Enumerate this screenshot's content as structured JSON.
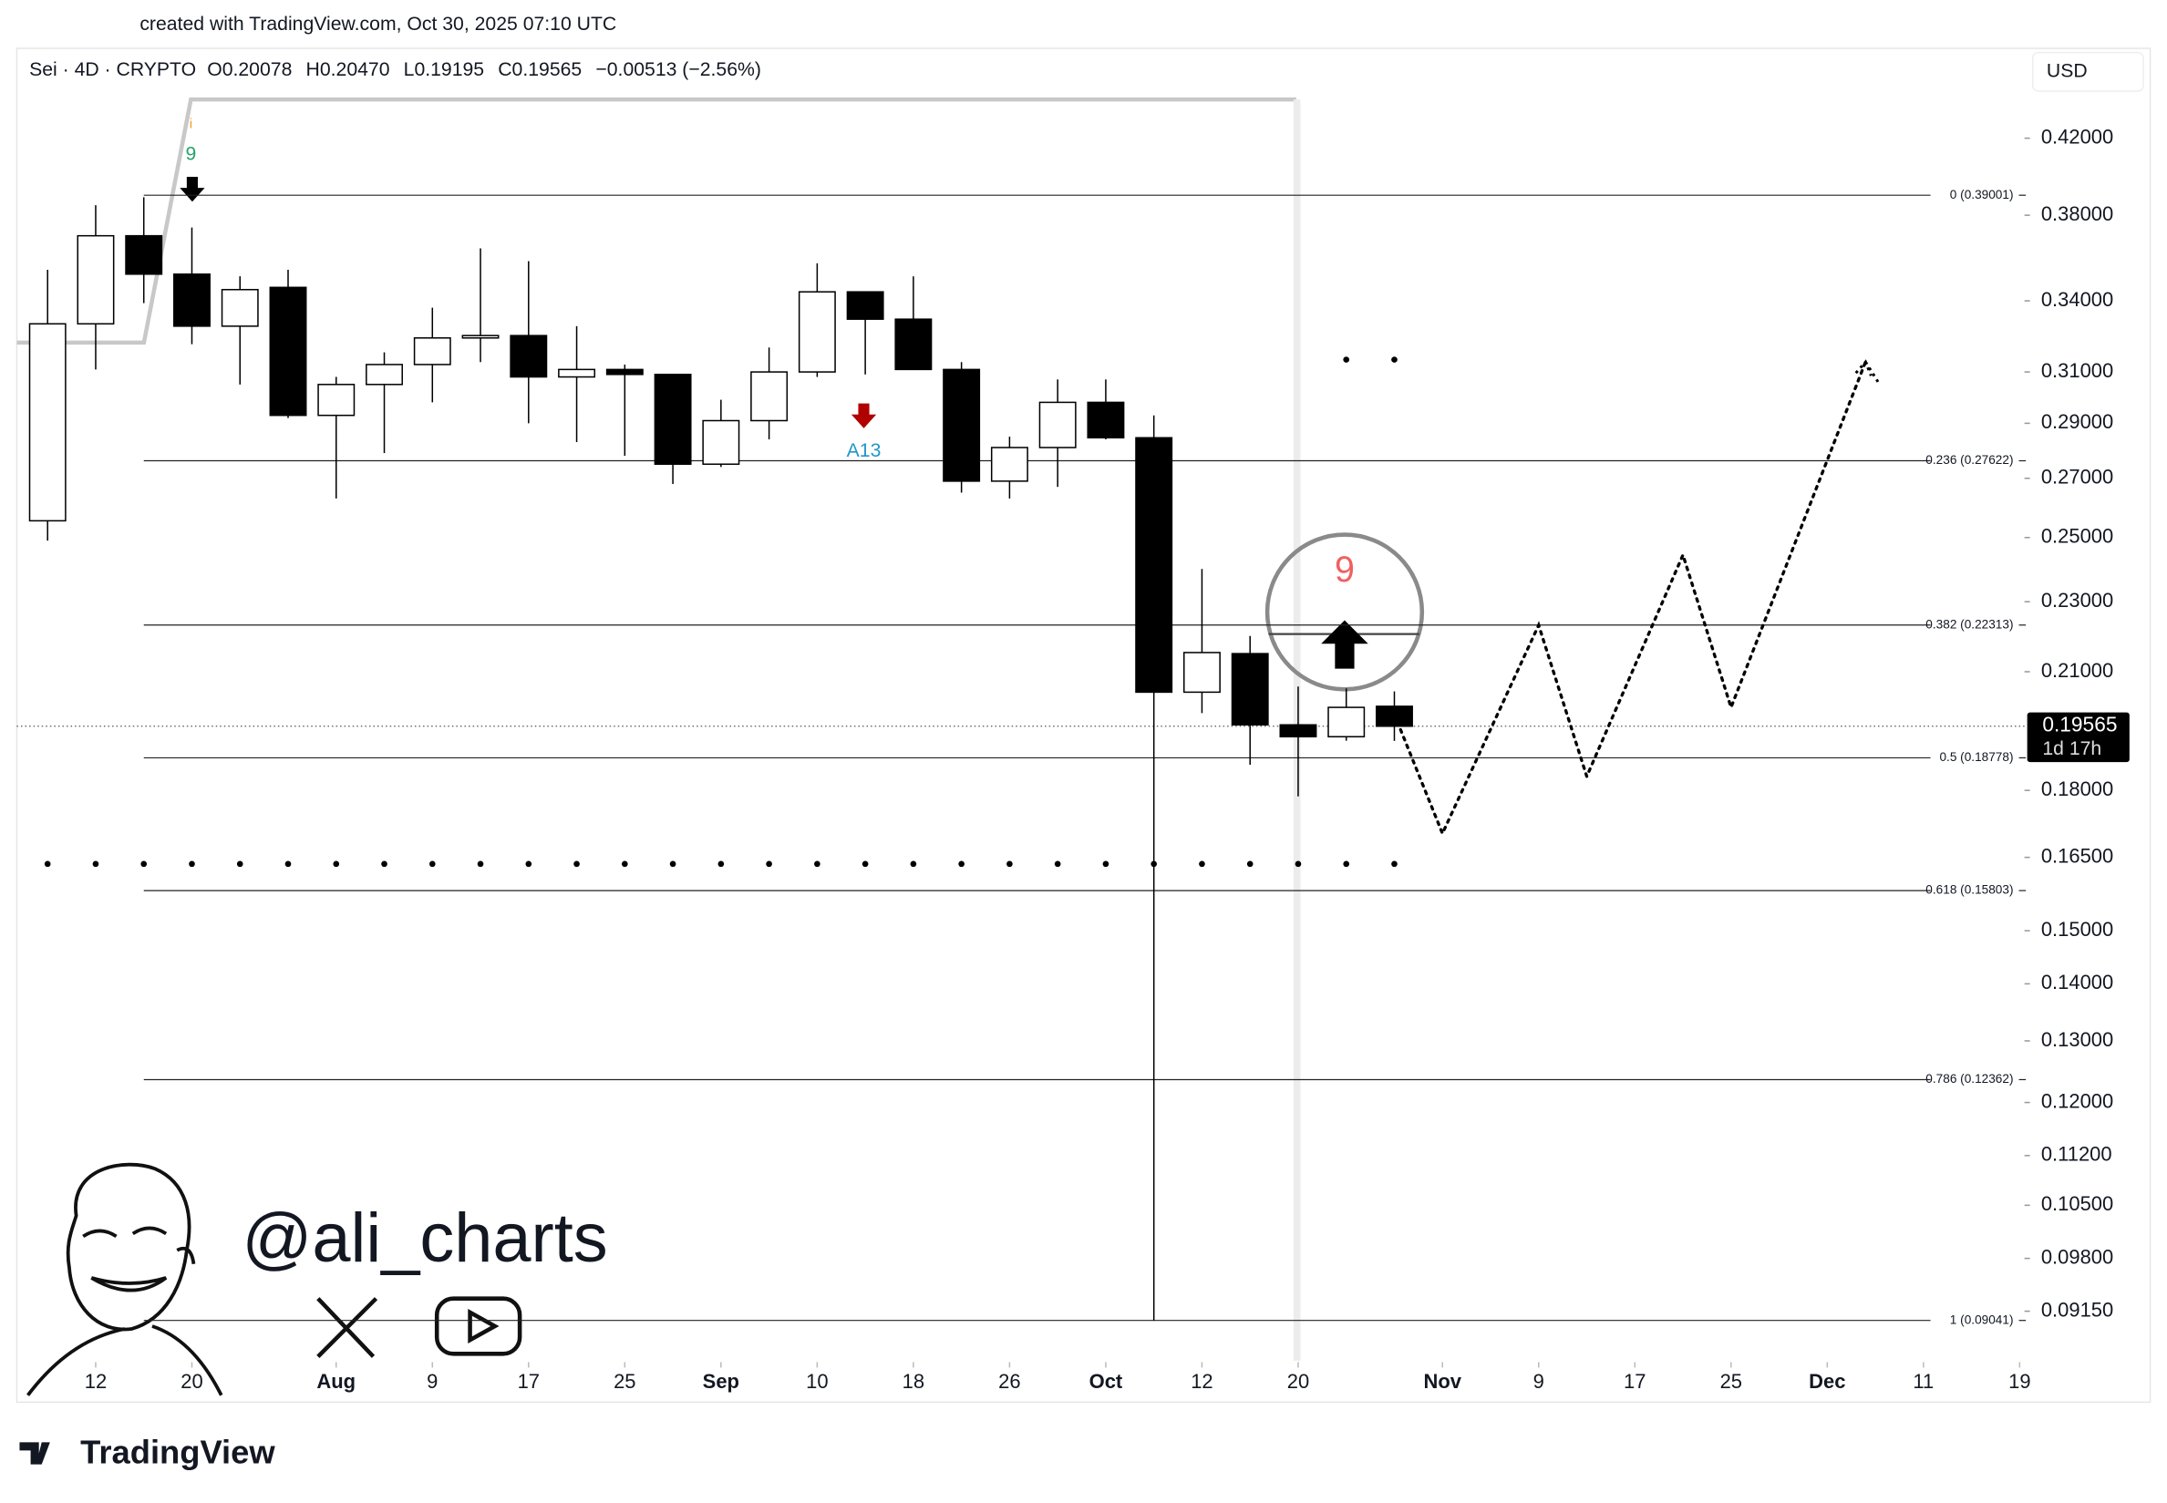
{
  "header": {
    "credit": "created with TradingView.com, Oct 30, 2025 07:10 UTC",
    "legend": [
      "Sei · 4D · CRYPTO",
      "O0.20078",
      "H0.20470",
      "L0.19195",
      "C0.19565",
      "−0.00513 (−2.56%)"
    ],
    "currency": "USD"
  },
  "watermark": {
    "handle": "@ali_charts",
    "brand": "TradingView"
  },
  "chart_data": {
    "type": "candlestick",
    "log_scale": true,
    "up_color": "#ffffff",
    "down_color": "#000000",
    "x": [
      0,
      1,
      2,
      3,
      4,
      5,
      6,
      7,
      8,
      9,
      10,
      11,
      12,
      13,
      14,
      15,
      16,
      17,
      18,
      19,
      20,
      21,
      22,
      23,
      24,
      25,
      26,
      27,
      28
    ],
    "open": [
      0.2555,
      0.33,
      0.37,
      0.352,
      0.329,
      0.346,
      0.293,
      0.305,
      0.313,
      0.324,
      0.325,
      0.308,
      0.311,
      0.309,
      0.275,
      0.291,
      0.31,
      0.344,
      0.332,
      0.311,
      0.269,
      0.281,
      0.298,
      0.2846,
      0.2045,
      0.215,
      0.196,
      0.193,
      0.20078
    ],
    "high": [
      0.354,
      0.385,
      0.389,
      0.374,
      0.351,
      0.354,
      0.308,
      0.318,
      0.337,
      0.364,
      0.358,
      0.329,
      0.313,
      0.309,
      0.299,
      0.32,
      0.357,
      0.344,
      0.351,
      0.314,
      0.285,
      0.307,
      0.307,
      0.293,
      0.24,
      0.22,
      0.206,
      0.2055,
      0.2047
    ],
    "low": [
      0.249,
      0.311,
      0.339,
      0.3214,
      0.305,
      0.292,
      0.263,
      0.279,
      0.298,
      0.314,
      0.29,
      0.283,
      0.278,
      0.268,
      0.274,
      0.284,
      0.308,
      0.309,
      0.311,
      0.265,
      0.263,
      0.267,
      0.284,
      0.0904,
      0.199,
      0.1861,
      0.1786,
      0.192,
      0.19195
    ],
    "close": [
      0.33,
      0.37,
      0.352,
      0.329,
      0.345,
      0.293,
      0.305,
      0.313,
      0.324,
      0.325,
      0.308,
      0.311,
      0.309,
      0.275,
      0.291,
      0.31,
      0.344,
      0.332,
      0.311,
      0.269,
      0.281,
      0.298,
      0.2846,
      0.2045,
      0.2153,
      0.196,
      0.193,
      0.2005,
      0.19565
    ],
    "xlim": [
      -0.64,
      41.1
    ],
    "ylim": [
      0.0858,
      0.472
    ],
    "xticks": [
      {
        "value": 1,
        "label": "12"
      },
      {
        "value": 3,
        "label": "20"
      },
      {
        "value": 6,
        "label": "Aug"
      },
      {
        "value": 8,
        "label": "9"
      },
      {
        "value": 10,
        "label": "17"
      },
      {
        "value": 12,
        "label": "25"
      },
      {
        "value": 14,
        "label": "Sep"
      },
      {
        "value": 16,
        "label": "10"
      },
      {
        "value": 18,
        "label": "18"
      },
      {
        "value": 20,
        "label": "26"
      },
      {
        "value": 22,
        "label": "Oct"
      },
      {
        "value": 24,
        "label": "12"
      },
      {
        "value": 26,
        "label": "20"
      },
      {
        "value": 29,
        "label": "Nov"
      },
      {
        "value": 31,
        "label": "9"
      },
      {
        "value": 33,
        "label": "17"
      },
      {
        "value": 35,
        "label": "25"
      },
      {
        "value": 37,
        "label": "Dec"
      },
      {
        "value": 39,
        "label": "11"
      },
      {
        "value": 41,
        "label": "19"
      }
    ],
    "yticks": [
      {
        "value": 0.42,
        "label": "0.42000"
      },
      {
        "value": 0.38,
        "label": "0.38000"
      },
      {
        "value": 0.34,
        "label": "0.34000"
      },
      {
        "value": 0.31,
        "label": "0.31000"
      },
      {
        "value": 0.29,
        "label": "0.29000"
      },
      {
        "value": 0.27,
        "label": "0.27000"
      },
      {
        "value": 0.25,
        "label": "0.25000"
      },
      {
        "value": 0.23,
        "label": "0.23000"
      },
      {
        "value": 0.21,
        "label": "0.21000"
      },
      {
        "value": 0.18,
        "label": "0.18000"
      },
      {
        "value": 0.165,
        "label": "0.16500"
      },
      {
        "value": 0.15,
        "label": "0.15000"
      },
      {
        "value": 0.14,
        "label": "0.14000"
      },
      {
        "value": 0.13,
        "label": "0.13000"
      },
      {
        "value": 0.12,
        "label": "0.12000"
      },
      {
        "value": 0.112,
        "label": "0.11200"
      },
      {
        "value": 0.105,
        "label": "0.10500"
      },
      {
        "value": 0.098,
        "label": "0.09800"
      },
      {
        "value": 0.0915,
        "label": "0.09150"
      }
    ],
    "fib_levels": [
      {
        "value": 0.39001,
        "label": "0 (0.39001)"
      },
      {
        "value": 0.27622,
        "label": "0.236 (0.27622)"
      },
      {
        "value": 0.22313,
        "label": "0.382 (0.22313)"
      },
      {
        "value": 0.18778,
        "label": "0.5 (0.18778)"
      },
      {
        "value": 0.15803,
        "label": "0.618 (0.15803)"
      },
      {
        "value": 0.12362,
        "label": "0.786 (0.12362)"
      },
      {
        "value": 0.09041,
        "label": "1 (0.09041)"
      }
    ],
    "projection": {
      "x": [
        28,
        29,
        31,
        32,
        34,
        35,
        37.8
      ],
      "values": [
        0.1987,
        0.1702,
        0.2231,
        0.1833,
        0.2444,
        0.2005,
        0.3143
      ]
    },
    "dots_low": {
      "x": [
        0,
        1,
        2,
        3,
        4,
        5,
        6,
        7,
        8,
        9,
        10,
        11,
        12,
        13,
        14,
        15,
        16,
        17,
        18,
        19,
        20,
        21,
        22,
        23,
        24,
        25,
        26,
        27,
        28
      ],
      "values": [
        0.1636,
        0.1636,
        0.1636,
        0.1636,
        0.1636,
        0.1636,
        0.1636,
        0.1636,
        0.1636,
        0.1636,
        0.1636,
        0.1636,
        0.1636,
        0.1636,
        0.1636,
        0.1636,
        0.1636,
        0.1636,
        0.1636,
        0.1636,
        0.1636,
        0.1636,
        0.1636,
        0.1636,
        0.1636,
        0.1636,
        0.1636,
        0.1636,
        0.1636
      ]
    },
    "dots_high": {
      "x": [
        27,
        28
      ],
      "values": [
        0.315,
        0.315
      ]
    },
    "last_price": 0.19565,
    "countdown": "1d 17h",
    "annotations": [
      "9",
      "A13",
      "9"
    ]
  }
}
